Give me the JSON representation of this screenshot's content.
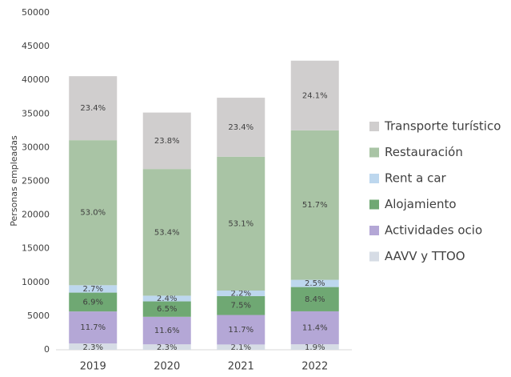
{
  "chart_data": {
    "type": "stacked_bar",
    "y_label": "Personas empleadas",
    "categories": [
      "2019",
      "2020",
      "2021",
      "2022"
    ],
    "ylim": [
      0,
      50000
    ],
    "yticks": [
      0,
      5000,
      10000,
      15000,
      20000,
      25000,
      30000,
      35000,
      40000,
      45000,
      50000
    ],
    "series": [
      {
        "name": "AAVV y TTOO",
        "color": "#d6dce5",
        "values": [
          934,
          810,
          785,
          815
        ],
        "shares": [
          {
            "value": 2.3,
            "label": "2.3%"
          },
          {
            "value": 2.3,
            "label": "2.3%"
          },
          {
            "value": 2.1,
            "label": "2.1%"
          },
          {
            "value": 1.9,
            "label": "1.9%"
          }
        ]
      },
      {
        "name": "Actividades ocio",
        "color": "#b4a7d6",
        "values": [
          4750,
          4083,
          4376,
          4891
        ],
        "shares": [
          {
            "value": 11.7,
            "label": "11.7%"
          },
          {
            "value": 11.6,
            "label": "11.6%"
          },
          {
            "value": 11.7,
            "label": "11.7%"
          },
          {
            "value": 11.4,
            "label": "11.4%"
          }
        ]
      },
      {
        "name": "Alojamiento",
        "color": "#6fa873",
        "values": [
          2800,
          2288,
          2805,
          3604
        ],
        "shares": [
          {
            "value": 6.9,
            "label": "6.9%"
          },
          {
            "value": 6.5,
            "label": "6.5%"
          },
          {
            "value": 7.5,
            "label": "7.5%"
          },
          {
            "value": 8.4,
            "label": "8.4%"
          }
        ]
      },
      {
        "name": "Rent a car",
        "color": "#bdd7ee",
        "values": [
          1096,
          845,
          823,
          1073
        ],
        "shares": [
          {
            "value": 2.7,
            "label": "2.7%"
          },
          {
            "value": 2.4,
            "label": "2.4%"
          },
          {
            "value": 2.2,
            "label": "2.2%"
          },
          {
            "value": 2.5,
            "label": "2.5%"
          }
        ]
      },
      {
        "name": "Restauración",
        "color": "#a9c4a5",
        "values": [
          21518,
          18797,
          19859,
          22179
        ],
        "shares": [
          {
            "value": 53.0,
            "label": "53.0%"
          },
          {
            "value": 53.4,
            "label": "53.4%"
          },
          {
            "value": 53.1,
            "label": "53.1%"
          },
          {
            "value": 51.7,
            "label": "51.7%"
          }
        ]
      },
      {
        "name": "Transporte turístico",
        "color": "#d0cece",
        "values": [
          9500,
          8378,
          8752,
          10339
        ],
        "shares": [
          {
            "value": 23.4,
            "label": "23.4%"
          },
          {
            "value": 23.8,
            "label": "23.8%"
          },
          {
            "value": 23.4,
            "label": "23.4%"
          },
          {
            "value": 24.1,
            "label": "24.1%"
          }
        ]
      }
    ]
  }
}
